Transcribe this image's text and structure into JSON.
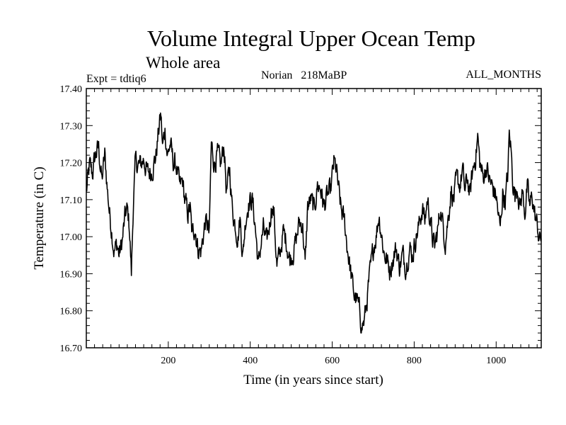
{
  "chart_data": {
    "type": "line",
    "title": "Volume Integral Upper Ocean Temp",
    "subtitle": "Whole area",
    "left_label": "Expt = tdtiq6",
    "center_label": "Norian   218MaBP",
    "right_label": "ALL_MONTHS",
    "xlabel": "Time (in years since start)",
    "ylabel": "Temperature (in C)",
    "xlim": [
      0,
      1110
    ],
    "ylim": [
      16.7,
      17.4
    ],
    "x_ticks": [
      200,
      400,
      600,
      800,
      1000
    ],
    "x_tick_labels": [
      "200",
      "400",
      "600",
      "800",
      "1000"
    ],
    "y_ticks": [
      16.7,
      16.8,
      16.9,
      17.0,
      17.1,
      17.2,
      17.3,
      17.4
    ],
    "y_tick_labels": [
      "16.70",
      "16.80",
      "16.90",
      "17.00",
      "17.10",
      "17.20",
      "17.30",
      "17.40"
    ],
    "grid": false,
    "series": [
      {
        "name": "Volume integral upper ocean temperature",
        "x_start": 0,
        "x_end": 1110,
        "anchors": [
          [
            0,
            17.12
          ],
          [
            8,
            17.19
          ],
          [
            15,
            17.17
          ],
          [
            22,
            17.22
          ],
          [
            30,
            17.24
          ],
          [
            38,
            17.15
          ],
          [
            45,
            17.22
          ],
          [
            52,
            17.12
          ],
          [
            58,
            17.05
          ],
          [
            62,
            17.02
          ],
          [
            68,
            16.96
          ],
          [
            75,
            16.98
          ],
          [
            80,
            16.95
          ],
          [
            88,
            16.99
          ],
          [
            95,
            17.06
          ],
          [
            100,
            17.07
          ],
          [
            105,
            17.03
          ],
          [
            110,
            16.9
          ],
          [
            115,
            17.1
          ],
          [
            120,
            17.2
          ],
          [
            130,
            17.19
          ],
          [
            140,
            17.21
          ],
          [
            150,
            17.17
          ],
          [
            160,
            17.18
          ],
          [
            170,
            17.22
          ],
          [
            178,
            17.3
          ],
          [
            182,
            17.33
          ],
          [
            186,
            17.24
          ],
          [
            192,
            17.29
          ],
          [
            198,
            17.22
          ],
          [
            205,
            17.25
          ],
          [
            212,
            17.2
          ],
          [
            220,
            17.19
          ],
          [
            228,
            17.13
          ],
          [
            235,
            17.15
          ],
          [
            240,
            17.1
          ],
          [
            248,
            17.06
          ],
          [
            253,
            17.08
          ],
          [
            258,
            17.0
          ],
          [
            265,
            17.03
          ],
          [
            272,
            16.97
          ],
          [
            280,
            16.96
          ],
          [
            290,
            17.04
          ],
          [
            296,
            17.03
          ],
          [
            300,
            17.0
          ],
          [
            305,
            17.25
          ],
          [
            312,
            17.2
          ],
          [
            320,
            17.22
          ],
          [
            328,
            17.19
          ],
          [
            336,
            17.25
          ],
          [
            342,
            17.12
          ],
          [
            350,
            17.18
          ],
          [
            356,
            17.08
          ],
          [
            362,
            17.04
          ],
          [
            370,
            17.0
          ],
          [
            375,
            17.05
          ],
          [
            382,
            16.95
          ],
          [
            388,
            17.04
          ],
          [
            395,
            17.09
          ],
          [
            405,
            17.1
          ],
          [
            412,
            17.03
          ],
          [
            420,
            16.92
          ],
          [
            426,
            16.98
          ],
          [
            432,
            17.02
          ],
          [
            440,
            16.98
          ],
          [
            448,
            17.04
          ],
          [
            452,
            17.09
          ],
          [
            458,
            17.06
          ],
          [
            465,
            16.92
          ],
          [
            472,
            16.95
          ],
          [
            480,
            17.01
          ],
          [
            488,
            16.99
          ],
          [
            496,
            16.94
          ],
          [
            505,
            16.96
          ],
          [
            512,
            16.99
          ],
          [
            520,
            17.04
          ],
          [
            528,
            17.03
          ],
          [
            534,
            16.92
          ],
          [
            540,
            17.08
          ],
          [
            548,
            17.1
          ],
          [
            556,
            17.07
          ],
          [
            564,
            17.14
          ],
          [
            572,
            17.13
          ],
          [
            580,
            17.08
          ],
          [
            588,
            17.11
          ],
          [
            596,
            17.12
          ],
          [
            604,
            17.2
          ],
          [
            610,
            17.18
          ],
          [
            616,
            17.12
          ],
          [
            622,
            17.07
          ],
          [
            630,
            17.04
          ],
          [
            636,
            16.98
          ],
          [
            642,
            16.93
          ],
          [
            648,
            16.88
          ],
          [
            654,
            16.84
          ],
          [
            660,
            16.83
          ],
          [
            666,
            16.8
          ],
          [
            672,
            16.76
          ],
          [
            678,
            16.77
          ],
          [
            684,
            16.82
          ],
          [
            690,
            16.88
          ],
          [
            696,
            16.93
          ],
          [
            702,
            16.98
          ],
          [
            708,
            17.01
          ],
          [
            714,
            17.06
          ],
          [
            720,
            17.01
          ],
          [
            726,
            16.96
          ],
          [
            732,
            16.94
          ],
          [
            740,
            16.91
          ],
          [
            748,
            16.94
          ],
          [
            756,
            16.97
          ],
          [
            764,
            16.92
          ],
          [
            772,
            16.95
          ],
          [
            780,
            16.92
          ],
          [
            788,
            16.97
          ],
          [
            796,
            16.95
          ],
          [
            804,
            17.0
          ],
          [
            812,
            17.03
          ],
          [
            820,
            17.08
          ],
          [
            826,
            17.04
          ],
          [
            832,
            17.1
          ],
          [
            838,
            17.06
          ],
          [
            844,
            17.0
          ],
          [
            850,
            16.97
          ],
          [
            858,
            17.02
          ],
          [
            864,
            17.08
          ],
          [
            870,
            17.03
          ],
          [
            876,
            16.99
          ],
          [
            884,
            17.06
          ],
          [
            890,
            17.13
          ],
          [
            896,
            17.1
          ],
          [
            904,
            17.15
          ],
          [
            912,
            17.14
          ],
          [
            918,
            17.18
          ],
          [
            924,
            17.12
          ],
          [
            930,
            17.16
          ],
          [
            936,
            17.11
          ],
          [
            942,
            17.17
          ],
          [
            950,
            17.22
          ],
          [
            955,
            17.27
          ],
          [
            960,
            17.2
          ],
          [
            968,
            17.16
          ],
          [
            976,
            17.19
          ],
          [
            984,
            17.15
          ],
          [
            992,
            17.13
          ],
          [
            1000,
            17.11
          ],
          [
            1006,
            17.05
          ],
          [
            1010,
            17.02
          ],
          [
            1016,
            17.12
          ],
          [
            1022,
            17.1
          ],
          [
            1028,
            17.16
          ],
          [
            1032,
            17.27
          ],
          [
            1036,
            17.24
          ],
          [
            1040,
            17.16
          ],
          [
            1046,
            17.11
          ],
          [
            1052,
            17.14
          ],
          [
            1058,
            17.08
          ],
          [
            1064,
            17.12
          ],
          [
            1070,
            17.07
          ],
          [
            1076,
            17.13
          ],
          [
            1082,
            17.08
          ],
          [
            1088,
            17.11
          ],
          [
            1094,
            17.06
          ],
          [
            1100,
            17.03
          ],
          [
            1106,
            16.99
          ],
          [
            1110,
            17.0
          ]
        ]
      }
    ]
  }
}
